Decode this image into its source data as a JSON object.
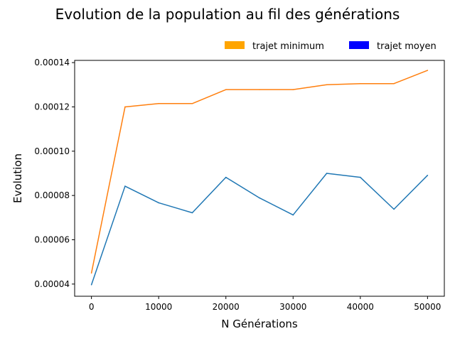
{
  "chart_data": {
    "type": "line",
    "title": "Evolution de la population au fil des générations",
    "xlabel": "N Générations",
    "ylabel": "Evolution",
    "xlim": [
      -2500,
      52500
    ],
    "ylim": [
      3.45e-05,
      0.000141
    ],
    "x_ticks": [
      0,
      10000,
      20000,
      30000,
      40000,
      50000
    ],
    "x_tick_labels": [
      "0",
      "10000",
      "20000",
      "30000",
      "40000",
      "50000"
    ],
    "y_ticks": [
      4e-05,
      6e-05,
      8e-05,
      0.0001,
      0.00012,
      0.00014
    ],
    "y_tick_labels": [
      "0.00004",
      "0.00006",
      "0.00008",
      "0.00010",
      "0.00012",
      "0.00014"
    ],
    "grid": false,
    "legend_position": "top-right, above plot",
    "legend": [
      {
        "label": "trajet minimum",
        "color": "#FFA500"
      },
      {
        "label": "trajet moyen",
        "color": "#0000FF"
      }
    ],
    "x": [
      0,
      5000,
      10000,
      15000,
      20000,
      25000,
      30000,
      35000,
      40000,
      45000,
      50000
    ],
    "series": [
      {
        "color": "#ff7f0e",
        "values": [
          4.5e-05,
          0.00012,
          0.0001215,
          0.0001215,
          0.0001278,
          0.0001278,
          0.0001278,
          0.00013,
          0.0001305,
          0.0001305,
          0.0001365
        ]
      },
      {
        "color": "#1f77b4",
        "values": [
          3.97e-05,
          8.42e-05,
          7.67e-05,
          7.22e-05,
          8.82e-05,
          7.89e-05,
          7.12e-05,
          9e-05,
          8.82e-05,
          7.38e-05,
          8.91e-05
        ]
      }
    ]
  }
}
